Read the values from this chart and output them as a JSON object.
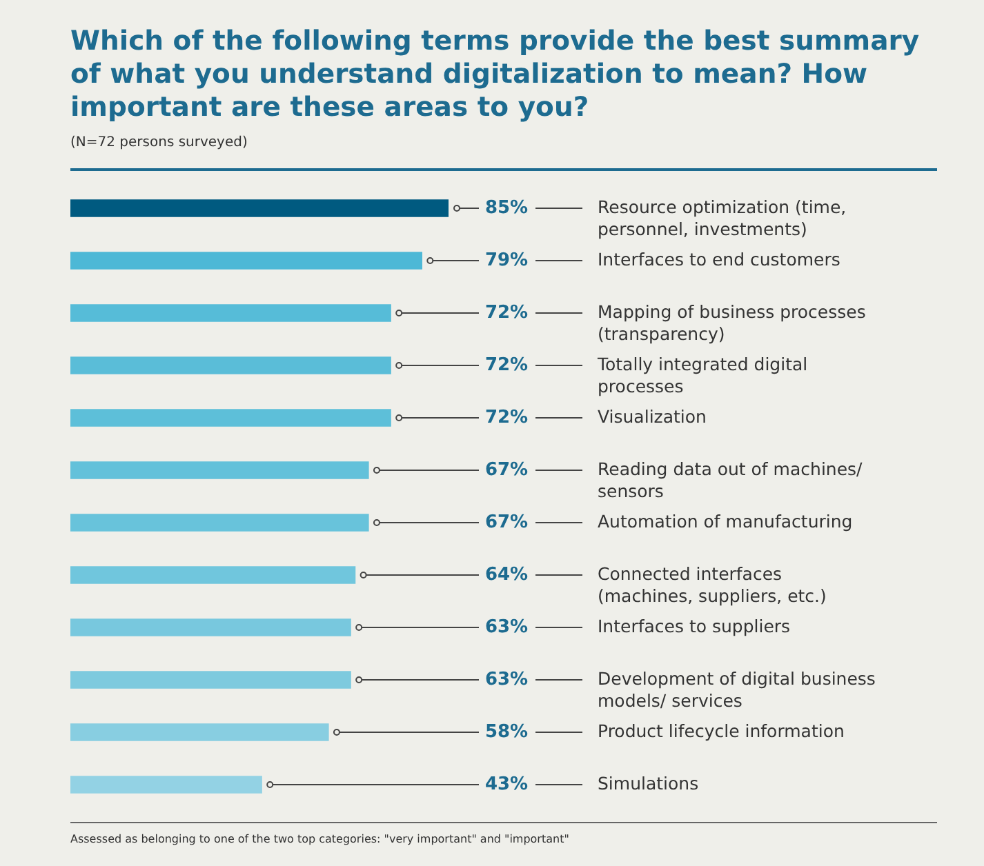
{
  "chart_data": {
    "type": "bar",
    "orientation": "horizontal",
    "title": "Which of the following terms provide the best summary of what you understand digitalization to mean? How important are these areas to you?",
    "subtitle": "(N=72 persons surveyed)",
    "annotations": [
      "Assessed as belonging to one of the two top categories: \"very important\" and \"important\""
    ],
    "categories": [
      "Resource optimization (time, personnel, investments)",
      "Interfaces to end customers",
      "Mapping of business processes (transparency)",
      "Totally integrated digital processes",
      "Visualization",
      "Reading data out of machines/ sensors",
      "Automation of manufacturing",
      "Connected interfaces (machines, suppliers, etc.)",
      "Interfaces to suppliers",
      "Development of digital business models/ services",
      "Product lifecycle information",
      "Simulations"
    ],
    "values": [
      85,
      79,
      72,
      72,
      72,
      67,
      67,
      64,
      63,
      63,
      58,
      43
    ],
    "value_labels": [
      "85%",
      "79%",
      "72%",
      "72%",
      "72%",
      "67%",
      "67%",
      "64%",
      "63%",
      "63%",
      "58%",
      "43%"
    ],
    "colors": [
      "#005a80",
      "#4db8d6",
      "#56bcd8",
      "#5abdd8",
      "#5dbfd9",
      "#63c1da",
      "#68c3db",
      "#70c6dd",
      "#78c8de",
      "#7ecade",
      "#88cee1",
      "#93d2e4"
    ],
    "xlim": [
      0,
      85
    ],
    "tick_labels": "y"
  }
}
